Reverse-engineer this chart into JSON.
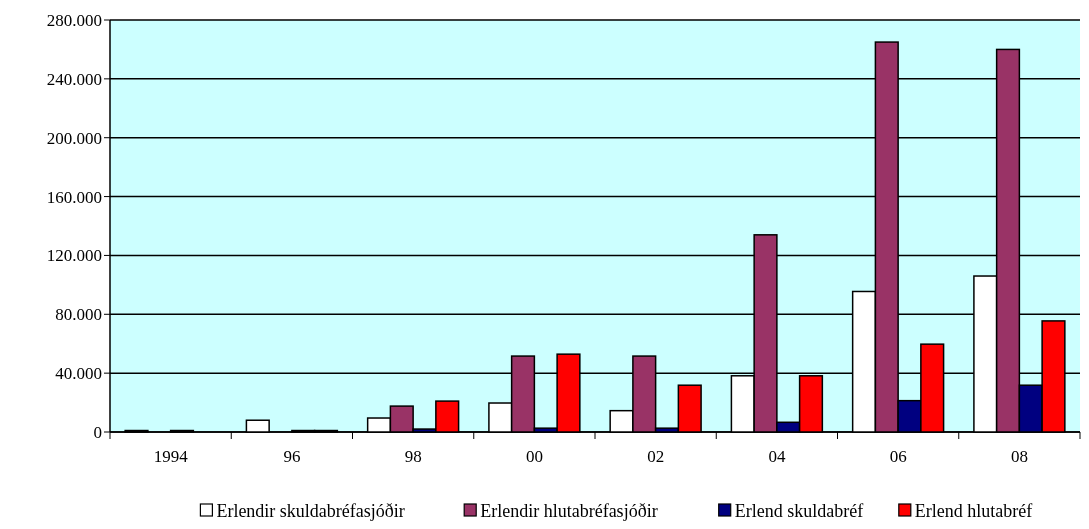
{
  "chart_data": {
    "type": "bar",
    "categories": [
      "1994",
      "96",
      "98",
      "00",
      "02",
      "04",
      "06",
      "08"
    ],
    "series": [
      {
        "name": "Erlendir skuldabréfasjóðir",
        "color": "#ffffff",
        "values": [
          1000,
          8000,
          9500,
          19700,
          14500,
          38200,
          95500,
          106000
        ]
      },
      {
        "name": "Erlendir hlutabréfasjóðir",
        "color": "#993366",
        "values": [
          0,
          0,
          17600,
          51600,
          51600,
          134000,
          265000,
          260000
        ]
      },
      {
        "name": "Erlend skuldabréf",
        "color": "#000080",
        "values": [
          1000,
          1000,
          2000,
          2600,
          2600,
          6600,
          21300,
          31800
        ]
      },
      {
        "name": "Erlend hlutabréf",
        "color": "#ff0000",
        "values": [
          0,
          1000,
          21000,
          52900,
          31800,
          38200,
          59700,
          75500
        ]
      }
    ],
    "ylim": [
      0,
      280000
    ],
    "yticks": [
      {
        "value": 0,
        "label": "0"
      },
      {
        "value": 40000,
        "label": "40.000"
      },
      {
        "value": 80000,
        "label": "80.000"
      },
      {
        "value": 120000,
        "label": "120.000"
      },
      {
        "value": 160000,
        "label": "160.000"
      },
      {
        "value": 200000,
        "label": "200.000"
      },
      {
        "value": 240000,
        "label": "240.000"
      },
      {
        "value": 280000,
        "label": "280.000"
      }
    ],
    "grid": "y",
    "legend": "bottom"
  }
}
